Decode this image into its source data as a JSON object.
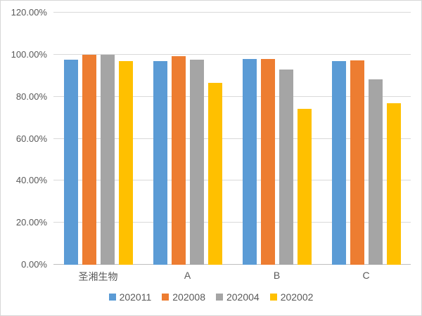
{
  "chart_data": {
    "type": "bar",
    "title": "",
    "xlabel": "",
    "ylabel": "",
    "grid": true,
    "legend_position": "bottom",
    "ylim": [
      0,
      120
    ],
    "ytick_step": 20,
    "yticks": [
      {
        "value": 0,
        "label": "0.00%"
      },
      {
        "value": 20,
        "label": "20.00%"
      },
      {
        "value": 40,
        "label": "40.00%"
      },
      {
        "value": 60,
        "label": "60.00%"
      },
      {
        "value": 80,
        "label": "80.00%"
      },
      {
        "value": 100,
        "label": "100.00%"
      },
      {
        "value": 120,
        "label": "120.00%"
      }
    ],
    "categories": [
      "圣湘生物",
      "A",
      "B",
      "C"
    ],
    "series": [
      {
        "name": "202011",
        "color": "#5B9BD5",
        "values": [
          97.5,
          96.9,
          98.0,
          97.1
        ]
      },
      {
        "name": "202008",
        "color": "#ED7D31",
        "values": [
          100.0,
          99.3,
          98.0,
          97.3
        ]
      },
      {
        "name": "202004",
        "color": "#A5A5A5",
        "values": [
          100.0,
          97.5,
          92.8,
          88.3
        ]
      },
      {
        "name": "202002",
        "color": "#FFC000",
        "values": [
          96.8,
          86.7,
          74.2,
          77.0
        ]
      }
    ]
  },
  "colors": {
    "gridline": "#D9D9D9",
    "axis_line": "#BFBFBF",
    "label_text": "#595959",
    "background": "#FFFFFF",
    "border": "#D7D7D7"
  }
}
